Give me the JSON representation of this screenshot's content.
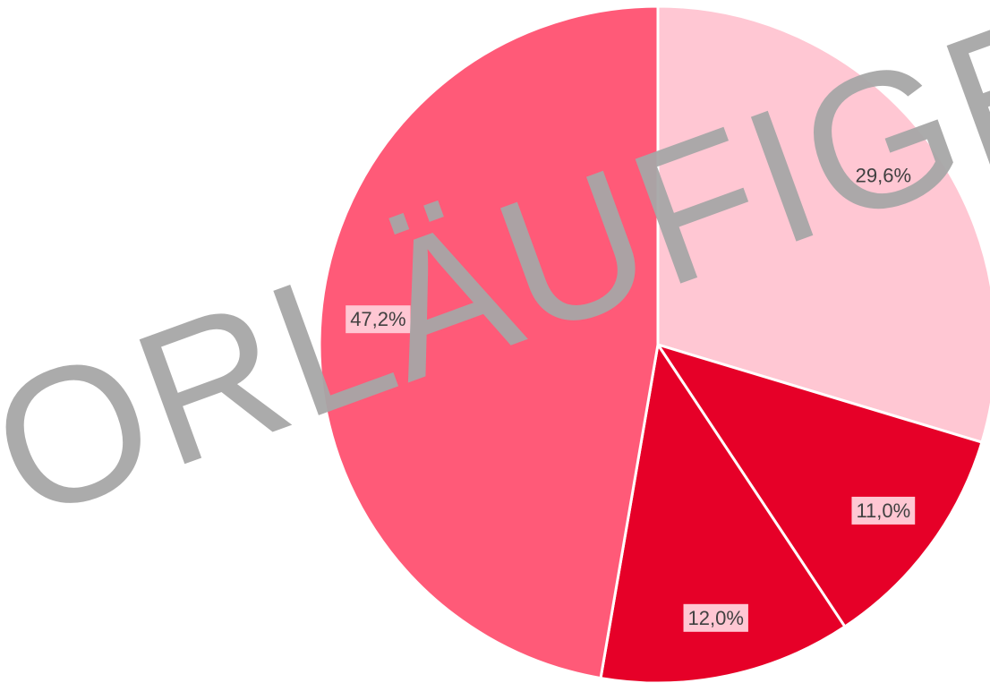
{
  "chart_data": {
    "type": "pie",
    "categories": [
      null,
      null,
      null,
      null
    ],
    "values": [
      29.6,
      11.0,
      12.0,
      47.2
    ],
    "value_labels": [
      "29,6%",
      "11,0%",
      "12,0%",
      "47,2%"
    ],
    "colors": [
      "#ffc7d3",
      "#e60028",
      "#e60028",
      "#ff5a78"
    ],
    "watermark": "VORLÄUFIGE E"
  }
}
